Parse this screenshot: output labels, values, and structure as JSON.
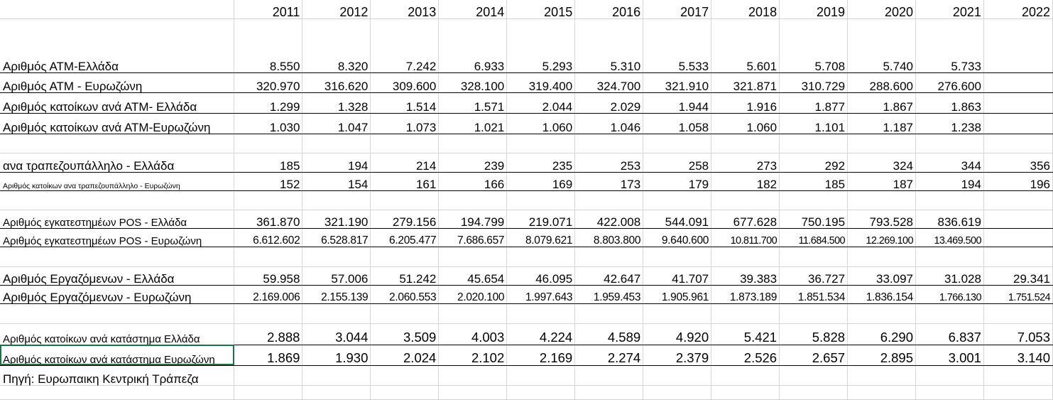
{
  "years": [
    "2011",
    "2012",
    "2013",
    "2014",
    "2015",
    "2016",
    "2017",
    "2018",
    "2019",
    "2020",
    "2021",
    "2022"
  ],
  "rows": [
    {
      "label": "Αριθμός ΑΤΜ-Ελλάδα",
      "values": [
        "8.550",
        "8.320",
        "7.242",
        "6.933",
        "5.293",
        "5.310",
        "5.533",
        "5.601",
        "5.708",
        "5.740",
        "5.733",
        ""
      ]
    },
    {
      "label": "Αριθμός ΑΤΜ - Ευρωζώνη",
      "values": [
        "320.970",
        "316.620",
        "309.600",
        "328.100",
        "319.400",
        "324.700",
        "321.910",
        "321.871",
        "310.729",
        "288.600",
        "276.600",
        ""
      ]
    },
    {
      "label": "Αριθμός κατοίκων ανά ΑΤΜ- Ελλάδα",
      "values": [
        "1.299",
        "1.328",
        "1.514",
        "1.571",
        "2.044",
        "2.029",
        "1.944",
        "1.916",
        "1.877",
        "1.867",
        "1.863",
        ""
      ]
    },
    {
      "label": "Αριθμός κατοίκων ανά ΑΤΜ-Ευρωζώνη",
      "values": [
        "1.030",
        "1.047",
        "1.073",
        "1.021",
        "1.060",
        "1.046",
        "1.058",
        "1.060",
        "1.101",
        "1.187",
        "1.238",
        ""
      ]
    },
    {
      "label": "ανα τραπεζουπάλληλο - Ελλάδα",
      "values": [
        "185",
        "194",
        "214",
        "239",
        "235",
        "253",
        "258",
        "273",
        "292",
        "324",
        "344",
        "356"
      ]
    },
    {
      "label": "Αριθμός κατοίκων ανα τραπεζουπάλληλο - Ευρωζώνη",
      "values": [
        "152",
        "154",
        "161",
        "166",
        "169",
        "173",
        "179",
        "182",
        "185",
        "187",
        "194",
        "196"
      ]
    },
    {
      "label": "Αριθμός εγκατεστημέων POS - Ελλάδα",
      "values": [
        "361.870",
        "321.190",
        "279.156",
        "194.799",
        "219.071",
        "422.008",
        "544.091",
        "677.628",
        "750.195",
        "793.528",
        "836.619",
        ""
      ]
    },
    {
      "label": "Αριθμός εγκατεστημέων POS - Ευρωζώνη",
      "values": [
        "6.612.602",
        "6.528.817",
        "6.205.477",
        "7.686.657",
        "8.079.621",
        "8.803.800",
        "9.640.600",
        "10.811.700",
        "11.684.500",
        "12.269.100",
        "13.469.500",
        ""
      ]
    },
    {
      "label": "Αριθμός Εργαζόμενων - Ελλάδα",
      "values": [
        "59.958",
        "57.006",
        "51.242",
        "45.654",
        "46.095",
        "42.647",
        "41.707",
        "39.383",
        "36.727",
        "33.097",
        "31.028",
        "29.341"
      ]
    },
    {
      "label": "Αριθμός Εργαζόμενων - Ευρωζώνη",
      "values": [
        "2.169.006",
        "2.155.139",
        "2.060.553",
        "2.020.100",
        "1.997.643",
        "1.959.453",
        "1.905.961",
        "1.873.189",
        "1.851.534",
        "1.836.154",
        "1.766.130",
        "1.751.524"
      ]
    },
    {
      "label": "Αριθμός κατοίκων ανά κατάστημα Ελλάδα",
      "values": [
        "2.888",
        "3.044",
        "3.509",
        "4.003",
        "4.224",
        "4.589",
        "4.920",
        "5.421",
        "5.828",
        "6.290",
        "6.837",
        "7.053"
      ]
    },
    {
      "label": "Αριθμός κατοίκων ανά κατάστημα  Ευρωζώνη",
      "values": [
        "1.869",
        "1.930",
        "2.024",
        "2.102",
        "2.169",
        "2.274",
        "2.379",
        "2.526",
        "2.657",
        "2.895",
        "3.001",
        "3.140"
      ]
    }
  ],
  "source": "Πηγή: Ευρωπαικη Κεντρική Τράπεζα",
  "colors": {
    "gridline": "#d4d4d4",
    "selection": "#1e7145"
  }
}
